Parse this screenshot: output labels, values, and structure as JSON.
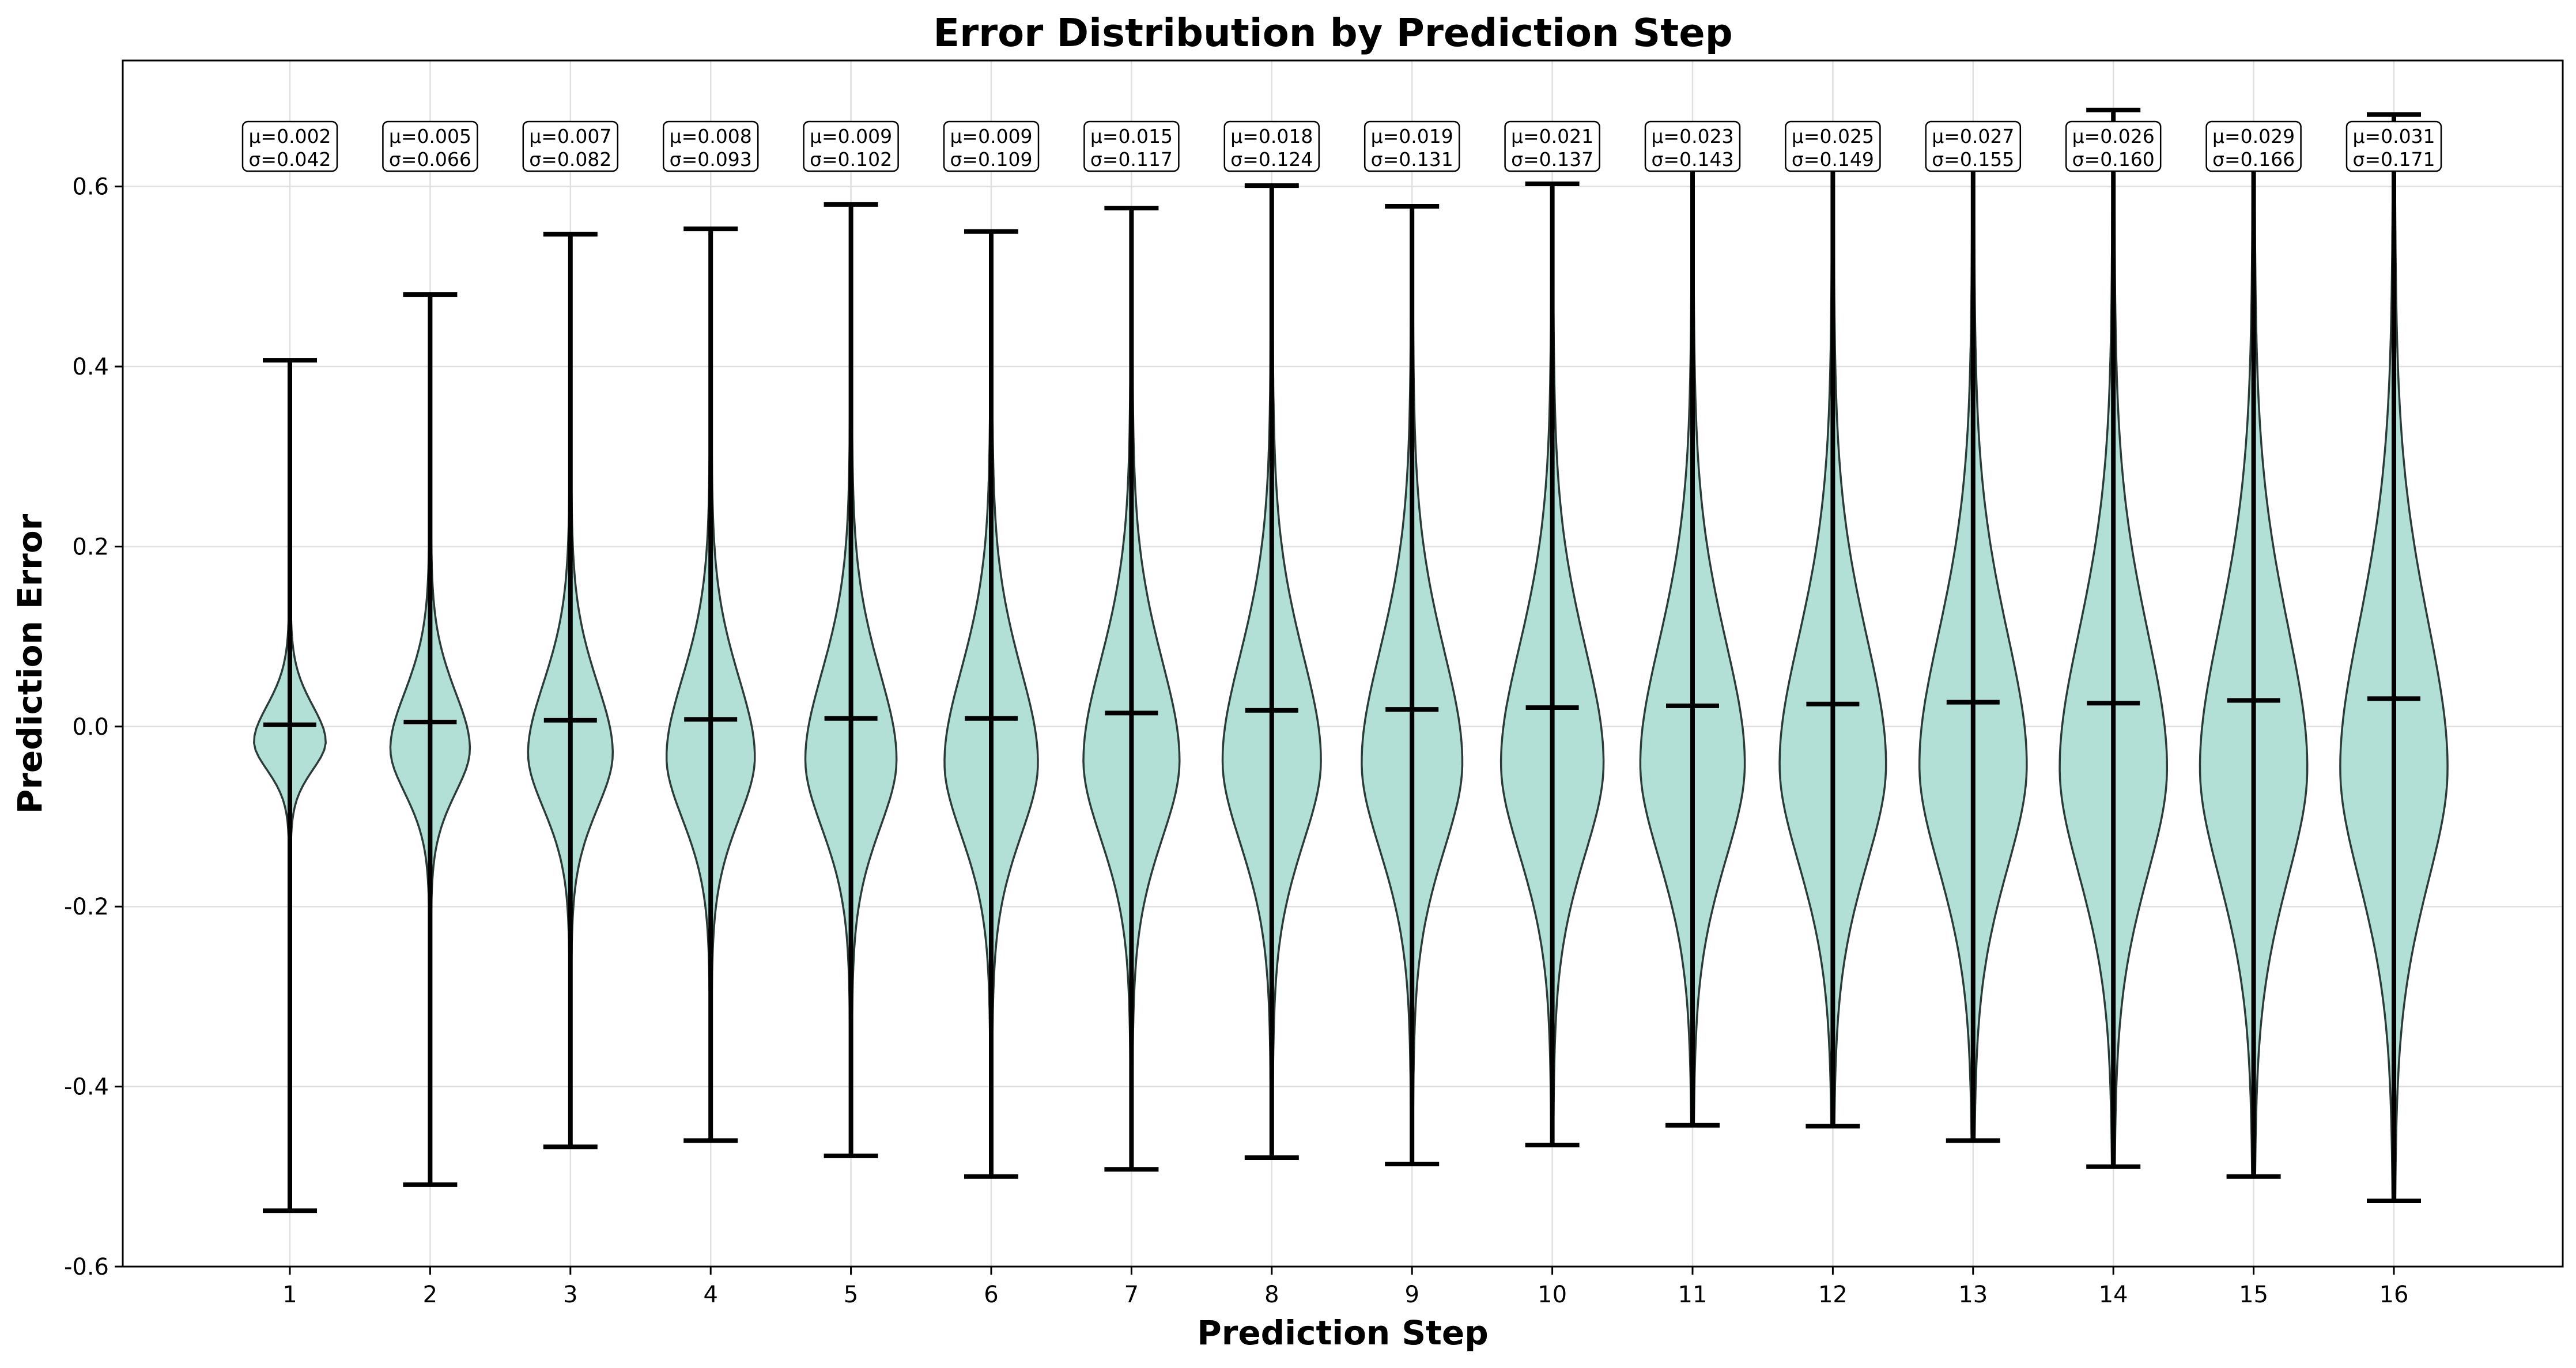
{
  "chart_data": {
    "type": "violin",
    "title": "Error Distribution by Prediction Step",
    "xlabel": "Prediction Step",
    "ylabel": "Prediction Error",
    "ylim": [
      -0.6,
      0.74
    ],
    "yticks": [
      -0.6,
      -0.4,
      -0.2,
      0.0,
      0.2,
      0.4,
      0.6
    ],
    "ytick_labels": [
      "-0.6",
      "-0.4",
      "-0.2",
      "0.0",
      "0.2",
      "0.4",
      "0.6"
    ],
    "grid": true,
    "violin_color": "#b2e0d7",
    "edge_color": "#2b3b37",
    "categories": [
      "1",
      "2",
      "3",
      "4",
      "5",
      "6",
      "7",
      "8",
      "9",
      "10",
      "11",
      "12",
      "13",
      "14",
      "15",
      "16"
    ],
    "mean": [
      0.002,
      0.005,
      0.007,
      0.008,
      0.009,
      0.009,
      0.015,
      0.018,
      0.019,
      0.021,
      0.023,
      0.025,
      0.027,
      0.026,
      0.029,
      0.031
    ],
    "std": [
      0.042,
      0.066,
      0.082,
      0.093,
      0.102,
      0.109,
      0.117,
      0.124,
      0.131,
      0.137,
      0.143,
      0.149,
      0.155,
      0.16,
      0.166,
      0.171
    ],
    "min": [
      -0.538,
      -0.509,
      -0.467,
      -0.46,
      -0.477,
      -0.5,
      -0.492,
      -0.479,
      -0.486,
      -0.465,
      -0.443,
      -0.444,
      -0.46,
      -0.489,
      -0.5,
      -0.527
    ],
    "max": [
      0.407,
      0.48,
      0.547,
      0.553,
      0.58,
      0.55,
      0.576,
      0.601,
      0.578,
      0.603,
      0.64,
      0.66,
      0.67,
      0.685,
      0.67,
      0.68
    ],
    "labels": [
      {
        "mu": "μ=0.002",
        "sigma": "σ=0.042"
      },
      {
        "mu": "μ=0.005",
        "sigma": "σ=0.066"
      },
      {
        "mu": "μ=0.007",
        "sigma": "σ=0.082"
      },
      {
        "mu": "μ=0.008",
        "sigma": "σ=0.093"
      },
      {
        "mu": "μ=0.009",
        "sigma": "σ=0.102"
      },
      {
        "mu": "μ=0.009",
        "sigma": "σ=0.109"
      },
      {
        "mu": "μ=0.015",
        "sigma": "σ=0.117"
      },
      {
        "mu": "μ=0.018",
        "sigma": "σ=0.124"
      },
      {
        "mu": "μ=0.019",
        "sigma": "σ=0.131"
      },
      {
        "mu": "μ=0.021",
        "sigma": "σ=0.137"
      },
      {
        "mu": "μ=0.023",
        "sigma": "σ=0.143"
      },
      {
        "mu": "μ=0.025",
        "sigma": "σ=0.149"
      },
      {
        "mu": "μ=0.027",
        "sigma": "σ=0.155"
      },
      {
        "mu": "μ=0.026",
        "sigma": "σ=0.160"
      },
      {
        "mu": "μ=0.029",
        "sigma": "σ=0.166"
      },
      {
        "mu": "μ=0.031",
        "sigma": "σ=0.171"
      }
    ]
  }
}
